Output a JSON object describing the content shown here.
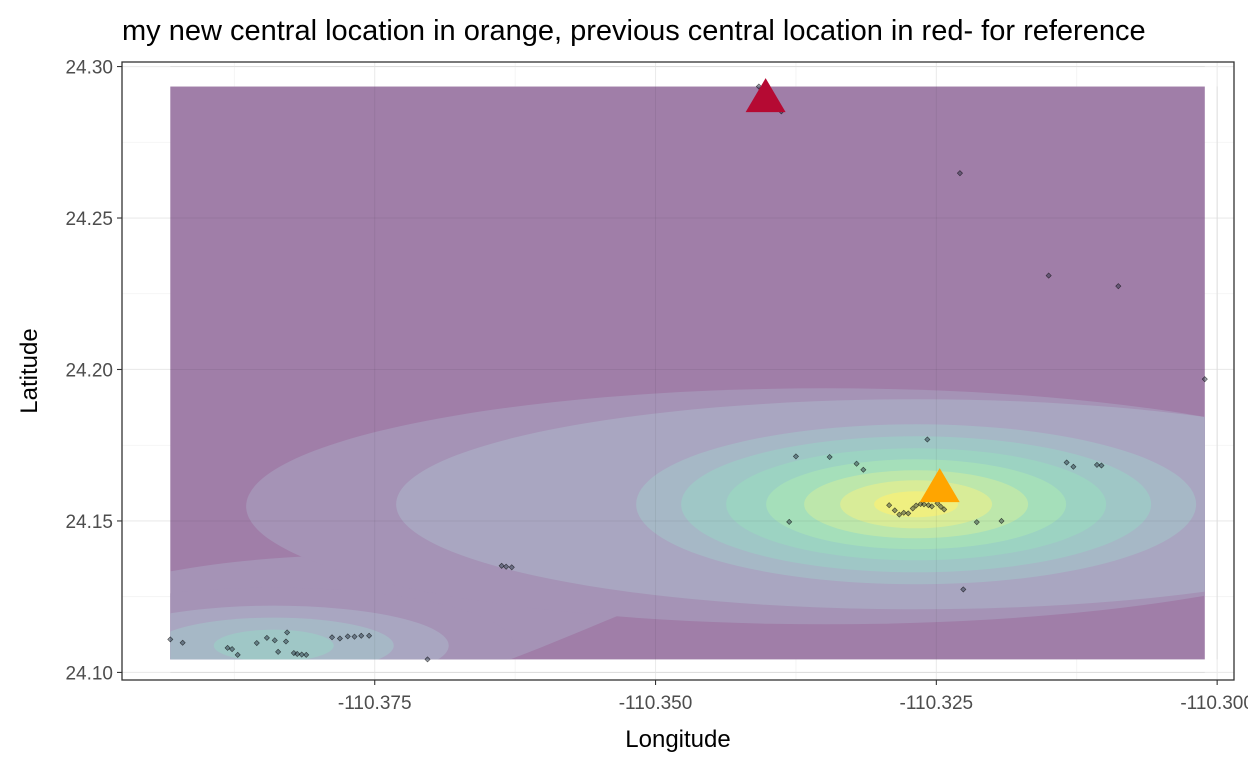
{
  "chart_data": {
    "type": "scatter",
    "title": "my new central location in orange, previous central location in red- for reference",
    "xlabel": "Longitude",
    "ylabel": "Latitude",
    "xlim": [
      -110.3975,
      -110.2985
    ],
    "ylim": [
      24.0975,
      24.3015
    ],
    "x_ticks": [
      -110.375,
      -110.35,
      -110.325,
      -110.3
    ],
    "x_tick_labels": [
      "-110.375",
      "-110.350",
      "-110.325",
      "-110.300"
    ],
    "y_ticks": [
      24.1,
      24.15,
      24.2,
      24.25,
      24.3
    ],
    "y_tick_labels": [
      "24.10",
      "24.15",
      "24.20",
      "24.25",
      "24.30"
    ],
    "grid": true,
    "theme": "bw",
    "density_region": {
      "x": [
        -110.3932,
        -110.3011
      ],
      "y": [
        24.1043,
        24.2934
      ]
    },
    "density_background_color": "#a07ea8",
    "density_palette": [
      "#a593b6",
      "#a9a6c1",
      "#a6b8c6",
      "#9fc7c6",
      "#9cd3c2",
      "#a5dfba",
      "#bde7ab",
      "#d8ec98",
      "#efef80"
    ],
    "density_peaks": [
      {
        "x": -110.3268,
        "y": 24.1555,
        "levels": 9
      },
      {
        "x": -110.3831,
        "y": 24.1095,
        "levels": 4
      }
    ],
    "points": [
      [
        -110.3932,
        24.1109
      ],
      [
        -110.3921,
        24.1098
      ],
      [
        -110.3881,
        24.1081
      ],
      [
        -110.3877,
        24.1077
      ],
      [
        -110.3872,
        24.1058
      ],
      [
        -110.3855,
        24.1097
      ],
      [
        -110.3846,
        24.1114
      ],
      [
        -110.3839,
        24.1106
      ],
      [
        -110.3836,
        24.1068
      ],
      [
        -110.3829,
        24.1102
      ],
      [
        -110.3828,
        24.1132
      ],
      [
        -110.3822,
        24.1064
      ],
      [
        -110.3819,
        24.1061
      ],
      [
        -110.3815,
        24.1059
      ],
      [
        -110.3811,
        24.1058
      ],
      [
        -110.3788,
        24.1116
      ],
      [
        -110.3781,
        24.1112
      ],
      [
        -110.3774,
        24.1119
      ],
      [
        -110.3768,
        24.1118
      ],
      [
        -110.3762,
        24.1121
      ],
      [
        -110.3755,
        24.1121
      ],
      [
        -110.3703,
        24.1043
      ],
      [
        -110.3637,
        24.1352
      ],
      [
        -110.3633,
        24.1349
      ],
      [
        -110.3628,
        24.1347
      ],
      [
        -110.3408,
        24.2934
      ],
      [
        -110.3401,
        24.2867
      ],
      [
        -110.3388,
        24.2852
      ],
      [
        -110.3321,
        24.1689
      ],
      [
        -110.3315,
        24.1669
      ],
      [
        -110.3345,
        24.1711
      ],
      [
        -110.3375,
        24.1713
      ],
      [
        -110.3381,
        24.1497
      ],
      [
        -110.3292,
        24.1552
      ],
      [
        -110.3287,
        24.1535
      ],
      [
        -110.3283,
        24.1521
      ],
      [
        -110.3279,
        24.1527
      ],
      [
        -110.3275,
        24.1525
      ],
      [
        -110.3271,
        24.1541
      ],
      [
        -110.3268,
        24.1551
      ],
      [
        -110.3264,
        24.1556
      ],
      [
        -110.3261,
        24.1555
      ],
      [
        -110.3257,
        24.1552
      ],
      [
        -110.3254,
        24.1548
      ],
      [
        -110.3249,
        24.1558
      ],
      [
        -110.3246,
        24.1547
      ],
      [
        -110.3243,
        24.1538
      ],
      [
        -110.3258,
        24.1769
      ],
      [
        -110.3229,
        24.2648
      ],
      [
        -110.3226,
        24.1274
      ],
      [
        -110.3214,
        24.1496
      ],
      [
        -110.3192,
        24.15
      ],
      [
        -110.315,
        24.231
      ],
      [
        -110.3134,
        24.1693
      ],
      [
        -110.3128,
        24.1679
      ],
      [
        -110.3107,
        24.1685
      ],
      [
        -110.3103,
        24.1683
      ],
      [
        -110.3088,
        24.2275
      ],
      [
        -110.3011,
        24.1968
      ]
    ],
    "markers": [
      {
        "label": "new central location",
        "x": -110.3247,
        "y": 24.1605,
        "color": "#ffa500",
        "shape": "triangle"
      },
      {
        "label": "previous central location",
        "x": -110.3402,
        "y": 24.2892,
        "color": "#b50a33",
        "shape": "triangle"
      }
    ]
  }
}
